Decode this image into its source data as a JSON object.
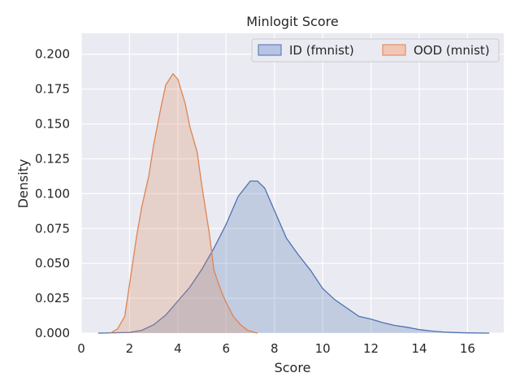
{
  "chart_data": {
    "type": "area",
    "title": "Minlogit Score",
    "xlabel": "Score",
    "ylabel": "Density",
    "xlim": [
      0,
      17.5
    ],
    "ylim": [
      0,
      0.215
    ],
    "xticks": [
      0,
      2,
      4,
      6,
      8,
      10,
      12,
      14,
      16
    ],
    "xtick_labels": [
      "0",
      "2",
      "4",
      "6",
      "8",
      "10",
      "12",
      "14",
      "16"
    ],
    "yticks": [
      0,
      0.025,
      0.05,
      0.075,
      0.1,
      0.125,
      0.15,
      0.175,
      0.2
    ],
    "ytick_labels": [
      "0.000",
      "0.025",
      "0.050",
      "0.075",
      "0.100",
      "0.125",
      "0.150",
      "0.175",
      "0.200"
    ],
    "grid": true,
    "legend_position": "top-right",
    "series": [
      {
        "name": "ID (fmnist)",
        "color": "#4c72b0",
        "fill": "#b8c4e4",
        "x": [
          0.7,
          2.0,
          2.5,
          3.0,
          3.5,
          4.0,
          4.5,
          5.0,
          5.5,
          6.0,
          6.5,
          7.0,
          7.3,
          7.6,
          8.0,
          8.5,
          9.0,
          9.5,
          10.0,
          10.5,
          11.0,
          11.5,
          12.0,
          12.5,
          13.0,
          13.5,
          14.0,
          14.5,
          15.0,
          15.5,
          16.0,
          16.9
        ],
        "y": [
          0.0,
          0.0005,
          0.002,
          0.006,
          0.013,
          0.023,
          0.033,
          0.046,
          0.061,
          0.078,
          0.098,
          0.109,
          0.109,
          0.104,
          0.088,
          0.068,
          0.056,
          0.045,
          0.032,
          0.024,
          0.018,
          0.012,
          0.01,
          0.0075,
          0.0055,
          0.0042,
          0.0025,
          0.0015,
          0.0008,
          0.0004,
          0.0002,
          0.0
        ]
      },
      {
        "name": "OOD (mnist)",
        "color": "#dd8452",
        "fill": "#f1c6b4",
        "x": [
          1.2,
          1.5,
          1.8,
          2.0,
          2.3,
          2.5,
          2.8,
          3.0,
          3.3,
          3.5,
          3.8,
          4.0,
          4.3,
          4.5,
          4.8,
          5.0,
          5.3,
          5.5,
          5.8,
          6.0,
          6.3,
          6.6,
          6.9,
          7.3
        ],
        "y": [
          0.0,
          0.003,
          0.012,
          0.035,
          0.07,
          0.09,
          0.113,
          0.135,
          0.162,
          0.178,
          0.186,
          0.182,
          0.165,
          0.148,
          0.13,
          0.105,
          0.072,
          0.045,
          0.03,
          0.022,
          0.012,
          0.006,
          0.002,
          0.0
        ]
      }
    ]
  }
}
